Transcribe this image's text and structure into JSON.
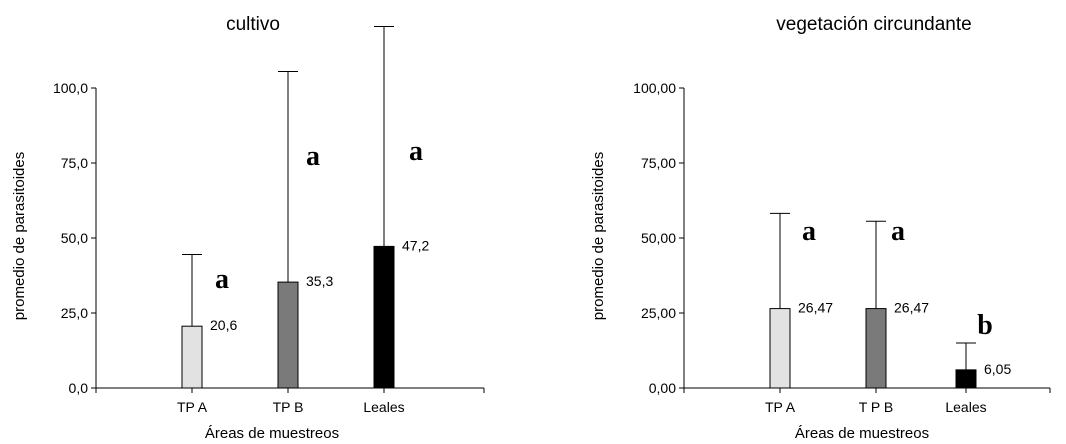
{
  "chart_data": [
    {
      "type": "bar",
      "title": "cultivo",
      "xlabel": "Áreas de muestreos",
      "ylabel": "promedio de parasitoides",
      "ylim": [
        0,
        100
      ],
      "yticks": [
        "0,0",
        "25,0",
        "50,0",
        "75,0",
        "100,0"
      ],
      "categories": [
        "TP A",
        "TP B",
        "Leales"
      ],
      "values": [
        20.6,
        35.3,
        47.2
      ],
      "error_upper": [
        44.5,
        105.5,
        120.5
      ],
      "value_labels": [
        "20,6",
        "35,3",
        "47,2"
      ],
      "letters": [
        "a",
        "a",
        "a"
      ],
      "colors": [
        "#e2e2e2",
        "#7a7a7a",
        "#000000"
      ]
    },
    {
      "type": "bar",
      "title": "vegetación circundante",
      "xlabel": "Áreas de muestreos",
      "ylabel": "promedio de parasitoides",
      "ylim": [
        0,
        100
      ],
      "yticks": [
        "0,00",
        "25,00",
        "50,00",
        "75,00",
        "100,00"
      ],
      "categories": [
        "TP  A",
        "T P B",
        "Leales"
      ],
      "values": [
        26.47,
        26.47,
        6.05
      ],
      "error_upper": [
        58.2,
        55.6,
        15.0
      ],
      "value_labels": [
        "26,47",
        "26,47",
        "6,05"
      ],
      "letters": [
        "a",
        "a",
        "b"
      ],
      "colors": [
        "#e2e2e2",
        "#7a7a7a",
        "#000000"
      ]
    }
  ]
}
